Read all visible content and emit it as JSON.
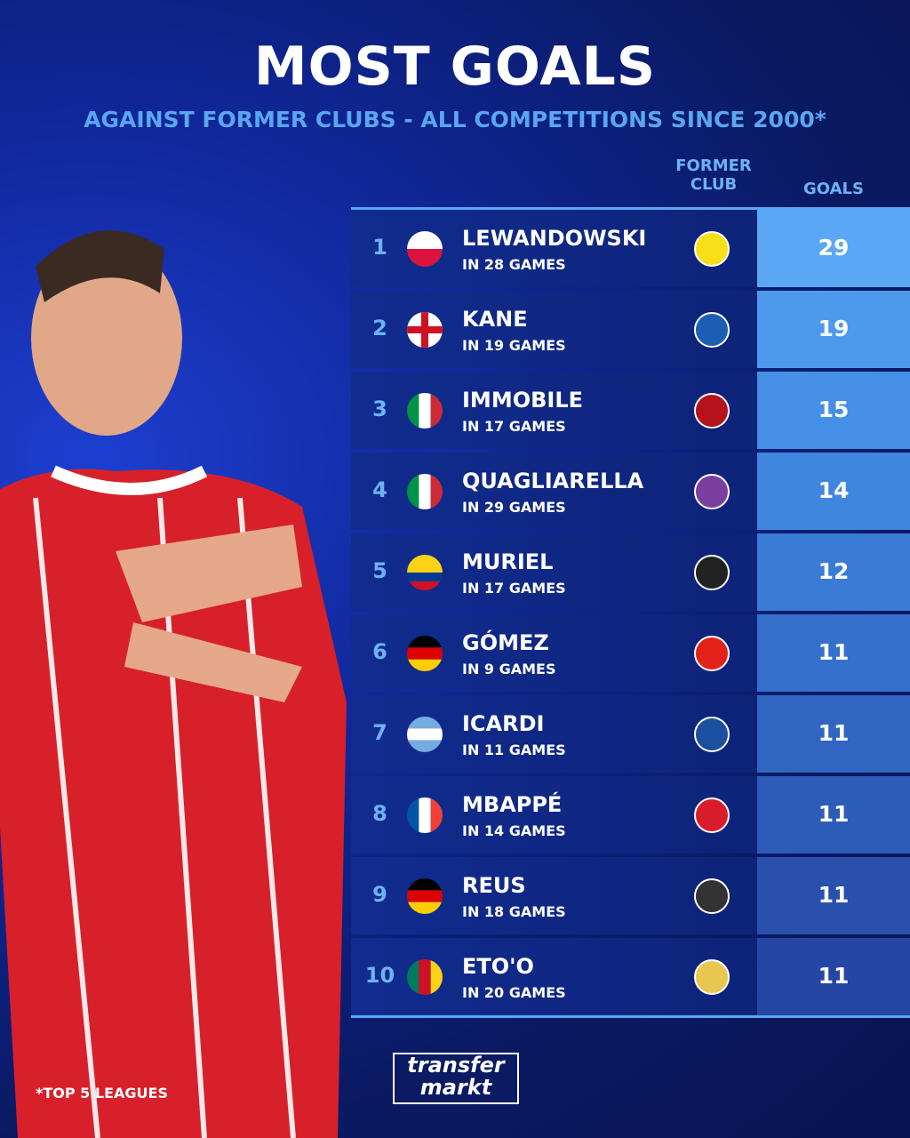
{
  "header": {
    "title": "MOST GOALS",
    "subtitle": "AGAINST FORMER CLUBS - ALL COMPETITIONS SINCE 2000*"
  },
  "table": {
    "columns": [
      "FORMER CLUB",
      "GOALS"
    ],
    "rows": [
      {
        "rank": 1,
        "name": "LEWANDOWSKI",
        "games": "IN 28 GAMES",
        "goals": 29
      },
      {
        "rank": 2,
        "name": "KANE",
        "games": "IN 19 GAMES",
        "goals": 19
      },
      {
        "rank": 3,
        "name": "IMMOBILE",
        "games": "IN 17 GAMES",
        "goals": 15
      },
      {
        "rank": 4,
        "name": "QUAGLIARELLA",
        "games": "IN 29 GAMES",
        "goals": 14
      },
      {
        "rank": 5,
        "name": "MURIEL",
        "games": "IN 17 GAMES",
        "goals": 12
      },
      {
        "rank": 6,
        "name": "GÓMEZ",
        "games": "IN 9 GAMES",
        "goals": 11
      },
      {
        "rank": 7,
        "name": "ICARDI",
        "games": "IN 11 GAMES",
        "goals": 11
      },
      {
        "rank": 8,
        "name": "MBAPPÉ",
        "games": "IN 14 GAMES",
        "goals": 11
      },
      {
        "rank": 9,
        "name": "REUS",
        "games": "IN 18 GAMES",
        "goals": 11
      },
      {
        "rank": 10,
        "name": "ETO'O",
        "games": "IN 20 GAMES",
        "goals": 11
      }
    ]
  },
  "footnote": "*TOP 5 LEAGUES",
  "logo": {
    "line1": "transfer",
    "line2": "markt"
  }
}
